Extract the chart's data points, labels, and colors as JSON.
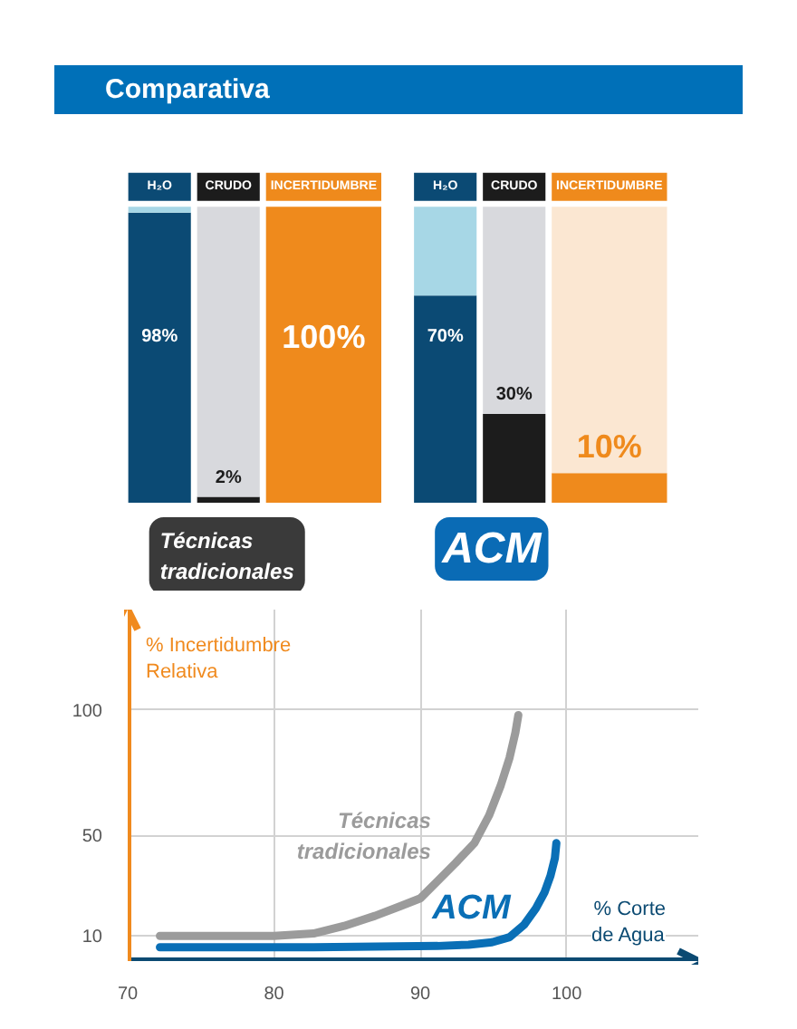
{
  "chart_data": [
    {
      "type": "bar",
      "title": "Comparativa",
      "xlabel": "Técnicas tradicionales",
      "stacked": true,
      "categories": [
        "H₂O",
        "CRUDO",
        "INCERTIDUMBRE"
      ],
      "series": [
        {
          "colors": [
            "#0b4a74",
            "#1c1c1c",
            "#ef8a1c"
          ],
          "values": [
            98,
            2,
            100
          ],
          "value_labels": [
            "98%",
            "2%",
            "100%"
          ]
        },
        {
          "colors": [
            "#a7d7e6",
            "#d8d9dd",
            "#fbe7d2"
          ],
          "values": [
            2,
            98,
            0
          ]
        }
      ]
    },
    {
      "type": "bar",
      "xlabel": "ACM",
      "stacked": true,
      "categories": [
        "H₂O",
        "CRUDO",
        "INCERTIDUMBRE"
      ],
      "series": [
        {
          "colors": [
            "#0b4a74",
            "#1c1c1c",
            "#ef8a1c"
          ],
          "values": [
            70,
            30,
            10
          ],
          "value_labels": [
            "70%",
            "30%",
            "10%"
          ]
        },
        {
          "colors": [
            "#a7d7e6",
            "#d8d9dd",
            "#fbe7d2"
          ],
          "values": [
            30,
            70,
            90
          ]
        }
      ]
    },
    {
      "type": "line",
      "xlabel": "% Corte de Agua",
      "ylabel": "% Incertidumbre Relativa",
      "xlim": [
        70,
        109
      ],
      "xticks": [
        70,
        80,
        90,
        100
      ],
      "ylim": [
        0,
        140
      ],
      "yticks": [
        10,
        50,
        100
      ],
      "grid": true,
      "series": [
        {
          "name": "Técnicas tradicionales",
          "color": "#9b9b9b",
          "x": [
            72.2,
            76.4,
            80,
            82.7,
            84.8,
            86.9,
            88.7,
            90,
            91.2,
            92.4,
            93.7,
            94.7,
            95.5,
            96.1,
            96.5,
            96.7
          ],
          "values": [
            10,
            10,
            10,
            11,
            14,
            18,
            22,
            25,
            32,
            39,
            47,
            58,
            70,
            81,
            91,
            98
          ]
        },
        {
          "name": "ACM",
          "color": "#0a6fb6",
          "x": [
            72.2,
            82.7,
            91.2,
            93.3,
            94.9,
            96.1,
            97.1,
            97.9,
            98.5,
            98.9,
            99.2,
            99.3
          ],
          "values": [
            5.5,
            5.5,
            6,
            6.5,
            7.5,
            9.5,
            14.5,
            21,
            27.5,
            34,
            41,
            47
          ]
        }
      ]
    }
  ]
}
